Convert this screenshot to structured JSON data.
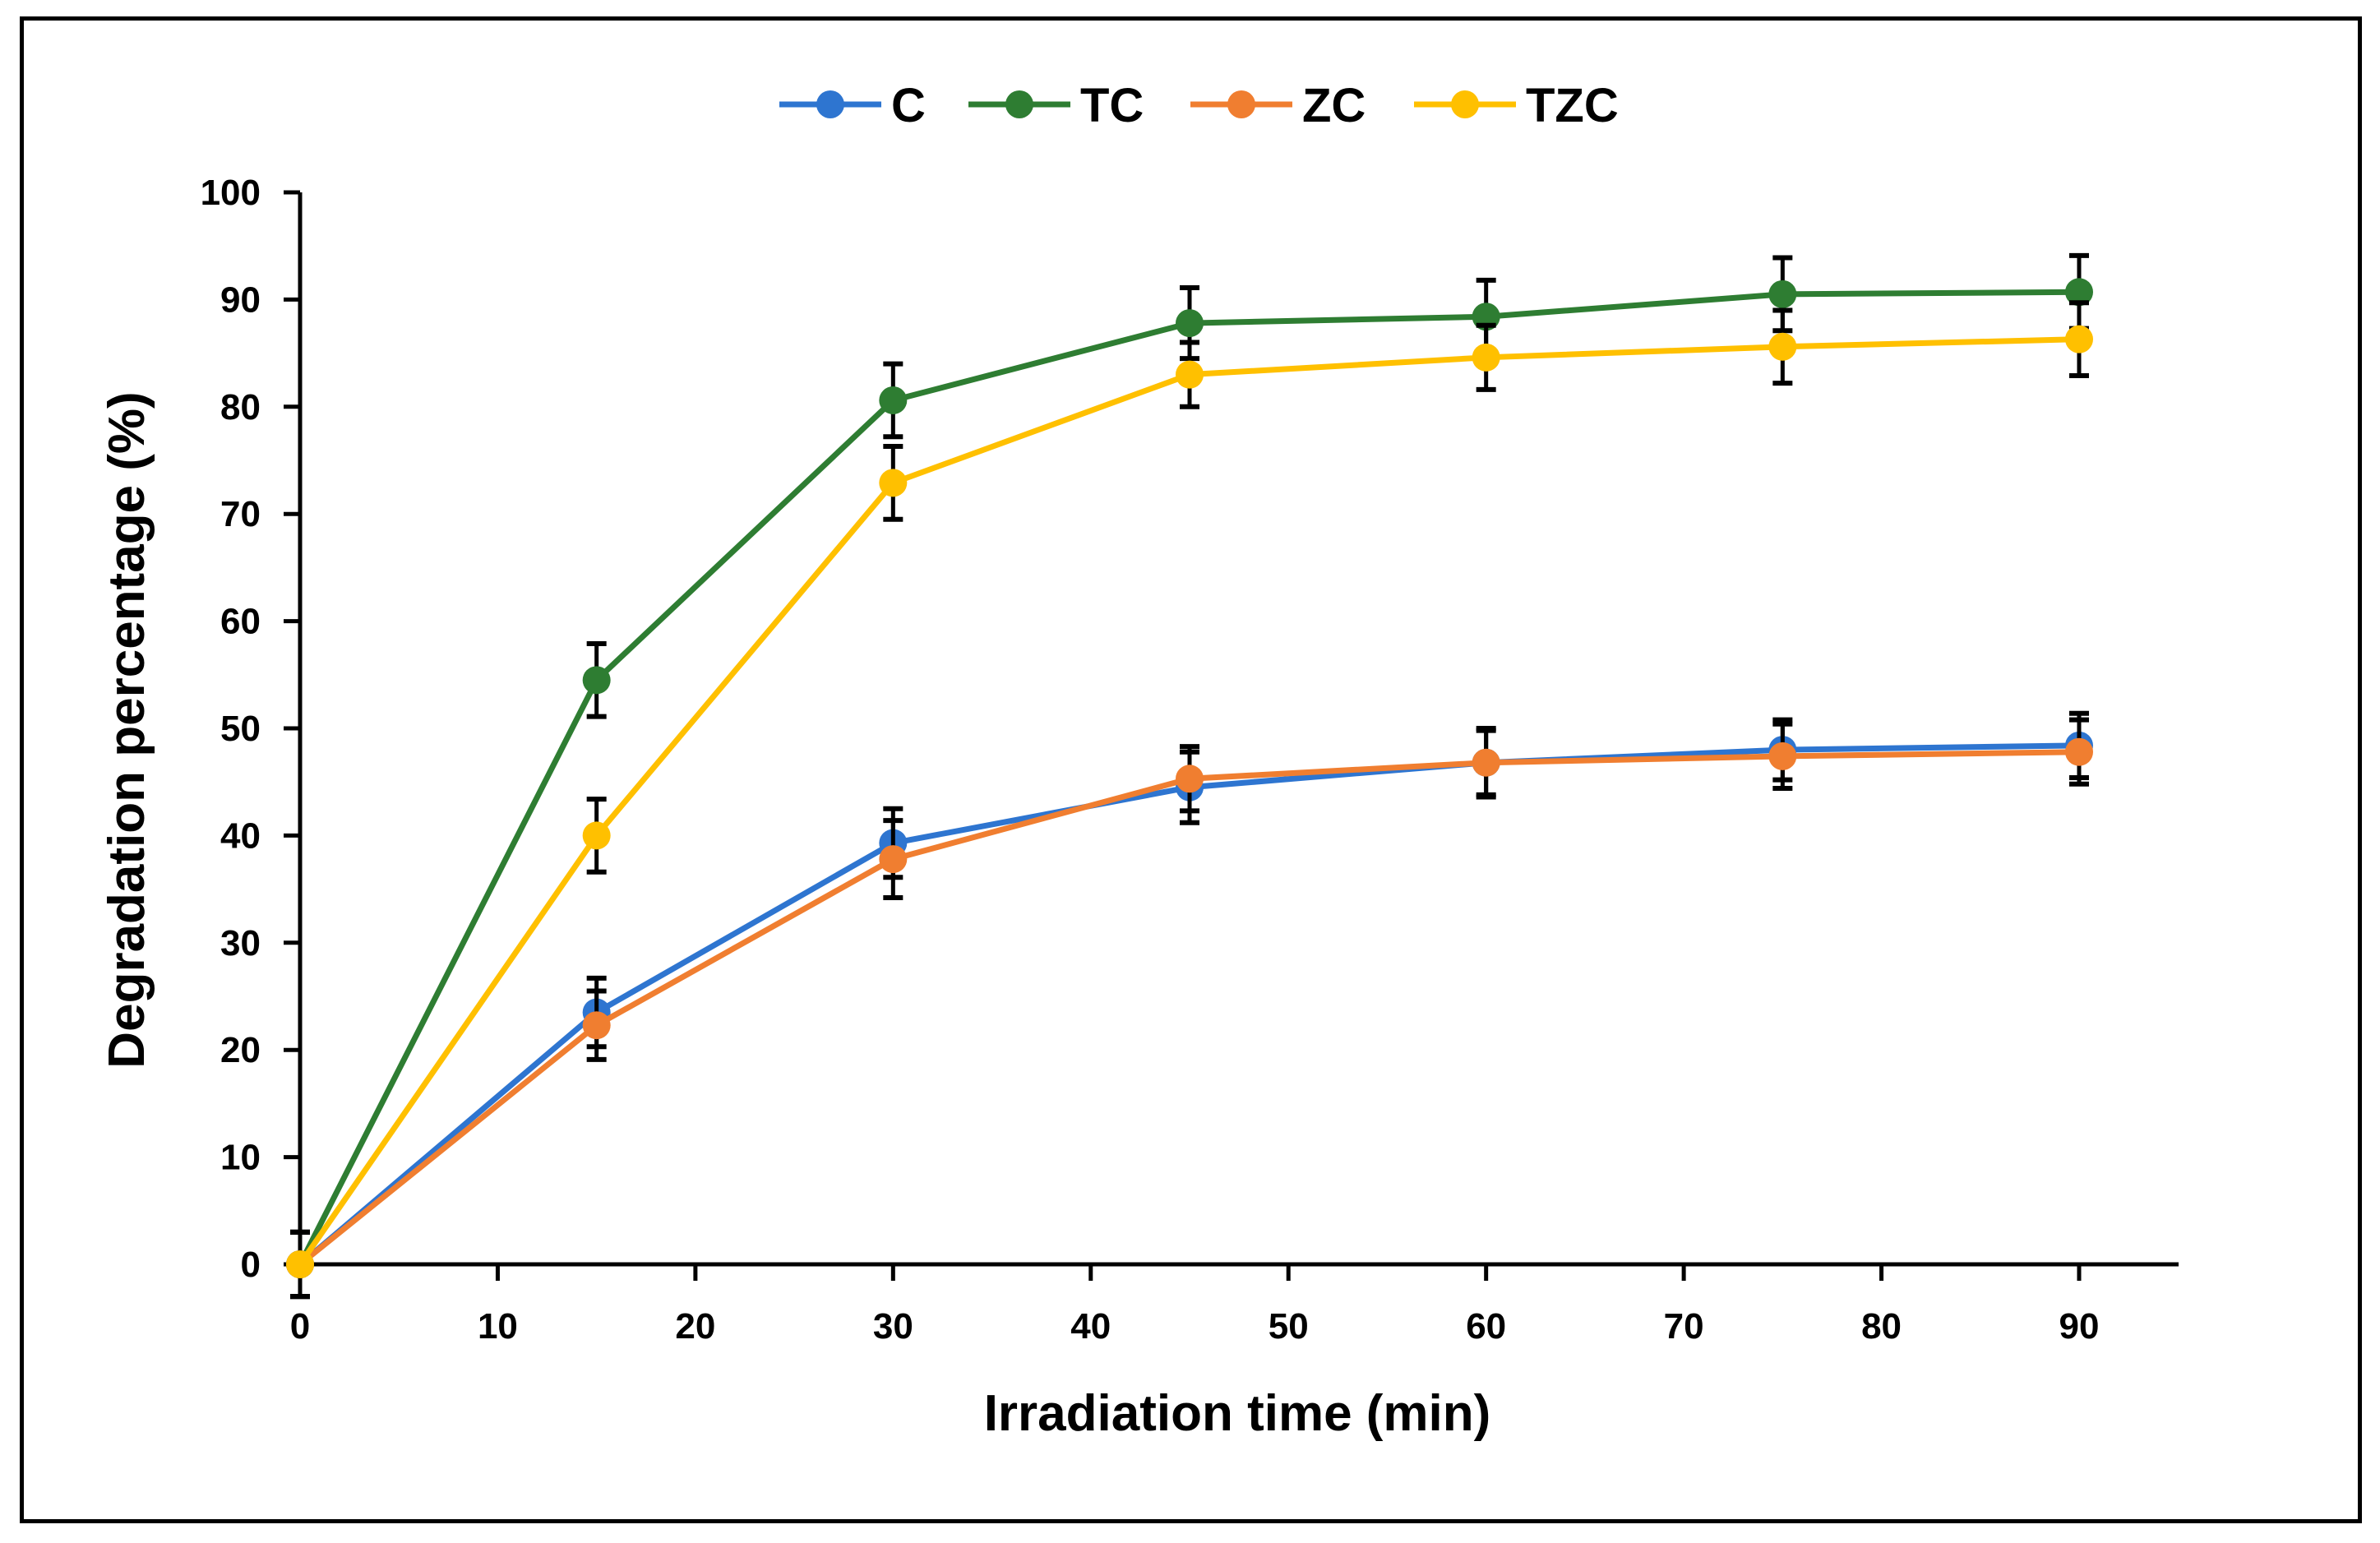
{
  "chart_data": {
    "type": "line",
    "title": "",
    "xlabel": "Irradiation time (min)",
    "ylabel": "Degradation percentage (%)",
    "xlim": [
      0,
      95
    ],
    "ylim": [
      0,
      100
    ],
    "x_ticks": [
      0,
      10,
      20,
      30,
      40,
      50,
      60,
      70,
      80,
      90
    ],
    "y_ticks": [
      0,
      10,
      20,
      30,
      40,
      50,
      60,
      70,
      80,
      90,
      100
    ],
    "grid": false,
    "legend_position": "top-center",
    "x": [
      0,
      15,
      30,
      45,
      60,
      75,
      90
    ],
    "series": [
      {
        "name": "C",
        "color": "#2E75D0",
        "values": [
          0,
          23.5,
          39.3,
          44.5,
          46.8,
          48.0,
          48.4
        ],
        "errors": [
          3,
          3.2,
          3.2,
          3.3,
          3.2,
          2.8,
          3.0
        ]
      },
      {
        "name": "TC",
        "color": "#2E7D32",
        "values": [
          0,
          54.5,
          80.6,
          87.8,
          88.4,
          90.5,
          90.7
        ],
        "errors": [
          3,
          3.4,
          3.4,
          3.3,
          3.4,
          3.4,
          3.4
        ]
      },
      {
        "name": "ZC",
        "color": "#F07E30",
        "values": [
          0,
          22.3,
          37.8,
          45.3,
          46.8,
          47.4,
          47.8
        ],
        "errors": [
          3,
          3.2,
          3.6,
          3.0,
          3.0,
          3.0,
          3.0
        ]
      },
      {
        "name": "TZC",
        "color": "#FFC000",
        "values": [
          0,
          40.0,
          72.9,
          83.0,
          84.6,
          85.6,
          86.3
        ],
        "errors": [
          3,
          3.4,
          3.4,
          3.0,
          3.0,
          3.4,
          3.4
        ]
      }
    ]
  }
}
